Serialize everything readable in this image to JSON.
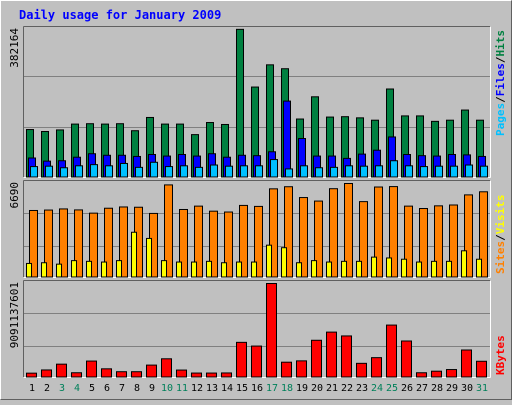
{
  "chart_data": {
    "type": "bar",
    "title": "Daily usage for January 2009",
    "categories": [
      "1",
      "2",
      "3",
      "4",
      "5",
      "6",
      "7",
      "8",
      "9",
      "10",
      "11",
      "12",
      "13",
      "14",
      "15",
      "16",
      "17",
      "18",
      "19",
      "20",
      "21",
      "22",
      "23",
      "24",
      "25",
      "26",
      "27",
      "28",
      "29",
      "30",
      "31"
    ],
    "weekend_days": [
      "3",
      "4",
      "10",
      "11",
      "17",
      "18",
      "24",
      "25",
      "31"
    ],
    "panels": [
      {
        "id": "hits_files_pages",
        "ymax_label": "382164",
        "ymax": 382164,
        "series": [
          {
            "name": "Hits",
            "color": "#008040",
            "values": [
              123000,
              118000,
              122000,
              137000,
              138000,
              137000,
              138000,
              120000,
              154000,
              137000,
              137000,
              110000,
              141000,
              136000,
              380000,
              232000,
              289000,
              279000,
              150000,
              207000,
              155000,
              156000,
              153000,
              147000,
              227000,
              158000,
              158000,
              144000,
              147000,
              173000,
              147000
            ]
          },
          {
            "name": "Files",
            "color": "#0000ff",
            "values": [
              50000,
              42000,
              43000,
              52000,
              61000,
              57000,
              57000,
              54000,
              59000,
              55000,
              59000,
              55000,
              61000,
              52000,
              57000,
              56000,
              66000,
              196000,
              100000,
              55000,
              55000,
              49000,
              60000,
              70000,
              104000,
              59000,
              56000,
              55000,
              59000,
              58000,
              54000
            ]
          },
          {
            "name": "Pages",
            "color": "#00c0ff",
            "values": [
              28000,
              29000,
              25000,
              30000,
              33000,
              30000,
              36000,
              26000,
              39000,
              28000,
              30000,
              26000,
              32000,
              29000,
              30000,
              30000,
              46000,
              22000,
              30000,
              25000,
              26000,
              30000,
              29000,
              30000,
              43000,
              30000,
              28000,
              29000,
              29000,
              32000,
              29000
            ]
          }
        ]
      },
      {
        "id": "sites_visits",
        "ymax_label": "6690",
        "ymax": 6690,
        "series": [
          {
            "name": "Sites",
            "color": "#ff8000",
            "values": [
              4770,
              4800,
              4880,
              4810,
              4580,
              4930,
              5020,
              5000,
              4560,
              6590,
              4840,
              5080,
              4720,
              4660,
              5130,
              5060,
              6310,
              6460,
              5690,
              5440,
              6320,
              6690,
              5400,
              6440,
              6470,
              5080,
              4910,
              5100,
              5160,
              5880,
              6100
            ]
          },
          {
            "name": "Visits",
            "color": "#ffff00",
            "values": [
              1000,
              1050,
              950,
              1200,
              1150,
              1100,
              1200,
              3220,
              2780,
              1200,
              1100,
              1100,
              1150,
              1050,
              1100,
              1100,
              2300,
              2120,
              1050,
              1200,
              1100,
              1150,
              1150,
              1450,
              1390,
              1300,
              1100,
              1150,
              1150,
              1900,
              1300
            ]
          }
        ]
      },
      {
        "id": "kbytes",
        "ymax_label": "9091137601",
        "ymax": 9091137601,
        "series": [
          {
            "name": "KBytes",
            "color": "#ff0000",
            "values": [
              420000000,
              730000000,
              1290000000,
              460000000,
              1590000000,
              840000000,
              560000000,
              560000000,
              1200000000,
              1810000000,
              720000000,
              430000000,
              430000000,
              440000000,
              3400000000,
              3040000000,
              9091137601,
              1480000000,
              1610000000,
              3600000000,
              4390000000,
              4020000000,
              1370000000,
              1920000000,
              5070000000,
              3530000000,
              460000000,
              610000000,
              770000000,
              2660000000,
              1570000000
            ]
          }
        ]
      }
    ]
  },
  "side_labels": {
    "top": [
      "Pages",
      "Files",
      "Hits"
    ],
    "middle": [
      "Sites",
      "Visits"
    ],
    "bottom": [
      "KBytes"
    ],
    "separator": "/"
  },
  "colors": {
    "background": "#c0c0c0",
    "title": "#0000ff",
    "weekday_label": "#000000",
    "weekend_label": "#00805a"
  }
}
